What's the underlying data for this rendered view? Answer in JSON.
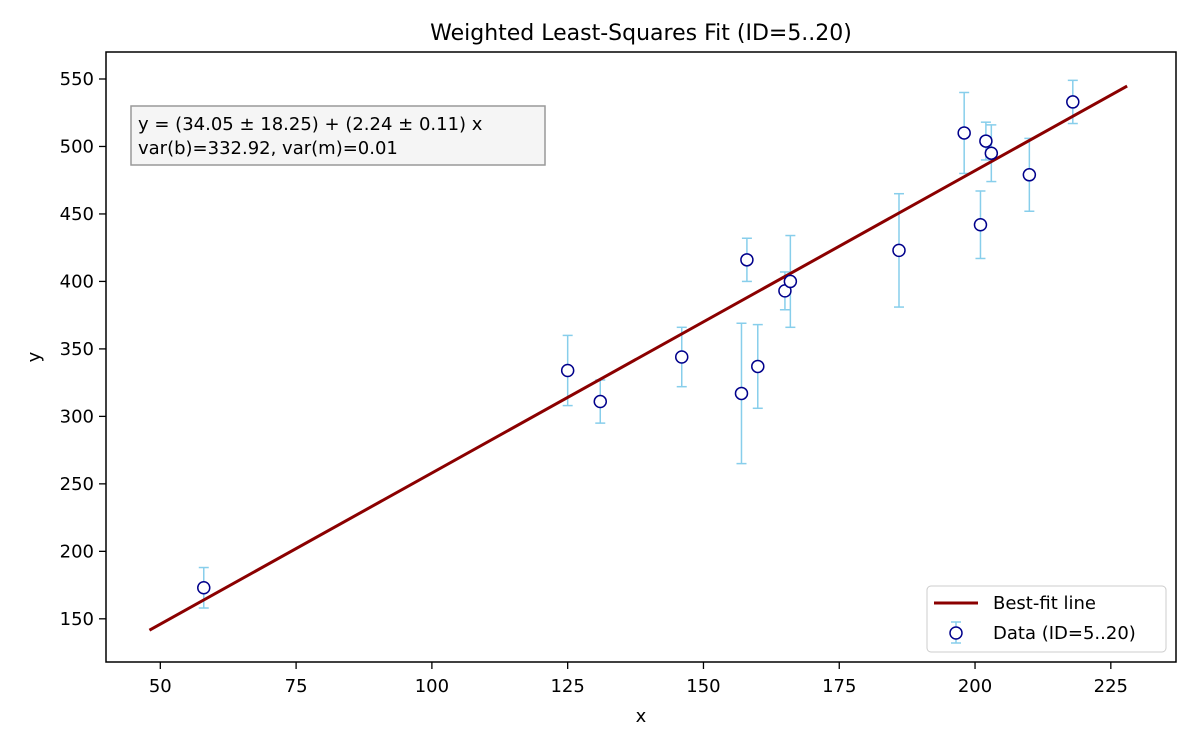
{
  "chart_data": {
    "type": "scatter",
    "title": "Weighted Least-Squares Fit (ID=5..20)",
    "xlabel": "x",
    "ylabel": "y",
    "xlim": [
      40,
      237
    ],
    "ylim": [
      118,
      570
    ],
    "xticks": [
      50,
      75,
      100,
      125,
      150,
      175,
      200,
      225
    ],
    "yticks": [
      150,
      200,
      250,
      300,
      350,
      400,
      450,
      500,
      550
    ],
    "grid": false,
    "legend_position": "lower-right",
    "annotation": {
      "line1": "y = (34.05 ± 18.25) + (2.24 ± 0.11) x",
      "line2": "var(b)=332.92, var(m)=0.01"
    },
    "fit_line": {
      "name": "Best-fit line",
      "intercept": 34.05,
      "slope": 2.24,
      "x_range": [
        48,
        228
      ],
      "color": "#8b0000"
    },
    "series": [
      {
        "name": "Data (ID=5..20)",
        "marker_edge_color": "#00008b",
        "errorbar_color": "#87ceeb",
        "points": [
          {
            "x": 58,
            "y": 173,
            "err": 15
          },
          {
            "x": 125,
            "y": 334,
            "err": 26
          },
          {
            "x": 131,
            "y": 311,
            "err": 16
          },
          {
            "x": 146,
            "y": 344,
            "err": 22
          },
          {
            "x": 157,
            "y": 317,
            "err": 52
          },
          {
            "x": 158,
            "y": 416,
            "err": 16
          },
          {
            "x": 160,
            "y": 337,
            "err": 31
          },
          {
            "x": 165,
            "y": 393,
            "err": 14
          },
          {
            "x": 166,
            "y": 400,
            "err": 34
          },
          {
            "x": 186,
            "y": 423,
            "err": 42
          },
          {
            "x": 198,
            "y": 510,
            "err": 30
          },
          {
            "x": 201,
            "y": 442,
            "err": 25
          },
          {
            "x": 202,
            "y": 504,
            "err": 14
          },
          {
            "x": 203,
            "y": 495,
            "err": 21
          },
          {
            "x": 210,
            "y": 479,
            "err": 27
          },
          {
            "x": 218,
            "y": 533,
            "err": 16
          }
        ]
      }
    ]
  }
}
